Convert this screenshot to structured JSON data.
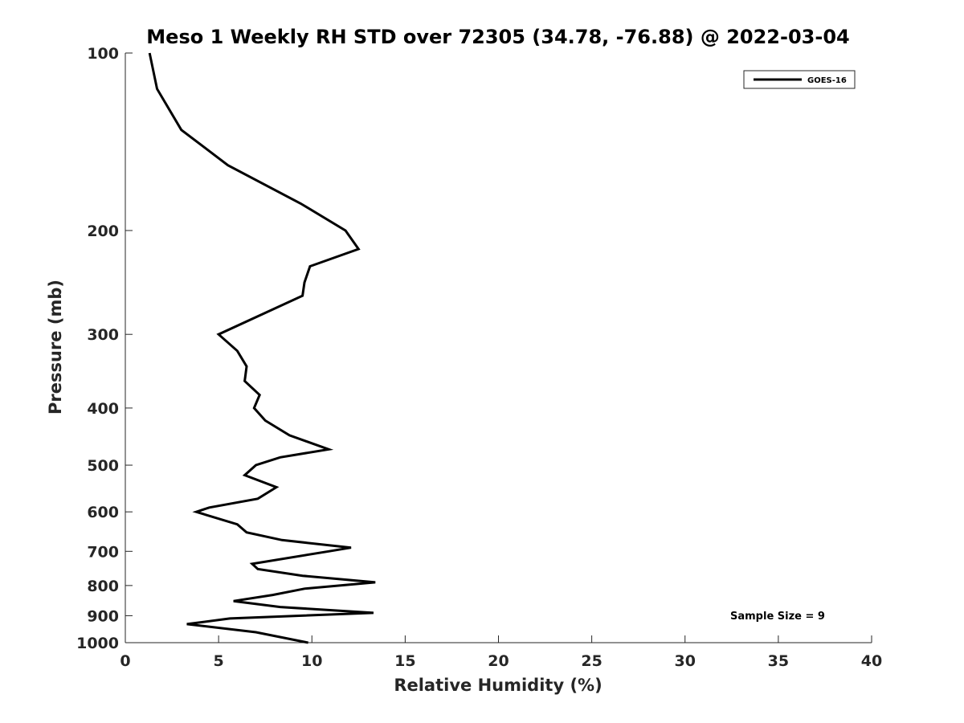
{
  "chart_data": {
    "type": "line",
    "title": "Meso 1 Weekly RH STD over 72305 (34.78, -76.88) @ 2022-03-04",
    "xlabel": "Relative Humidity (%)",
    "ylabel": "Pressure (mb)",
    "xlim": [
      0,
      40
    ],
    "ylim": [
      1000,
      100
    ],
    "yscale": "log",
    "y_reversed": true,
    "grid": false,
    "xticks": [
      0,
      5,
      10,
      15,
      20,
      25,
      30,
      35,
      40
    ],
    "yticks": [
      100,
      200,
      300,
      400,
      500,
      600,
      700,
      800,
      900,
      1000
    ],
    "legend": {
      "placement": "top-right",
      "entries": [
        "GOES-16"
      ]
    },
    "annotation": "Sample Size = 9",
    "series": [
      {
        "name": "GOES-16",
        "color": "#000000",
        "x": [
          1.3,
          1.7,
          3.0,
          5.5,
          9.4,
          11.8,
          12.5,
          9.9,
          9.6,
          9.5,
          5.0,
          6.0,
          6.5,
          6.4,
          7.2,
          6.9,
          7.5,
          8.8,
          10.9,
          8.3,
          7.0,
          6.4,
          8.1,
          7.1,
          4.5,
          3.8,
          6.0,
          6.5,
          8.4,
          12.1,
          10.9,
          6.8,
          7.1,
          9.5,
          13.4,
          9.6,
          7.9,
          5.8,
          8.3,
          13.3,
          5.6,
          3.3,
          7.0,
          9.8
        ],
        "y": [
          100,
          115,
          135,
          155,
          180,
          200,
          215,
          230,
          245,
          258,
          300,
          320,
          340,
          360,
          380,
          400,
          420,
          445,
          470,
          485,
          500,
          520,
          545,
          570,
          590,
          600,
          630,
          650,
          670,
          690,
          700,
          735,
          750,
          770,
          790,
          810,
          830,
          850,
          870,
          890,
          910,
          930,
          960,
          1000
        ]
      }
    ]
  }
}
